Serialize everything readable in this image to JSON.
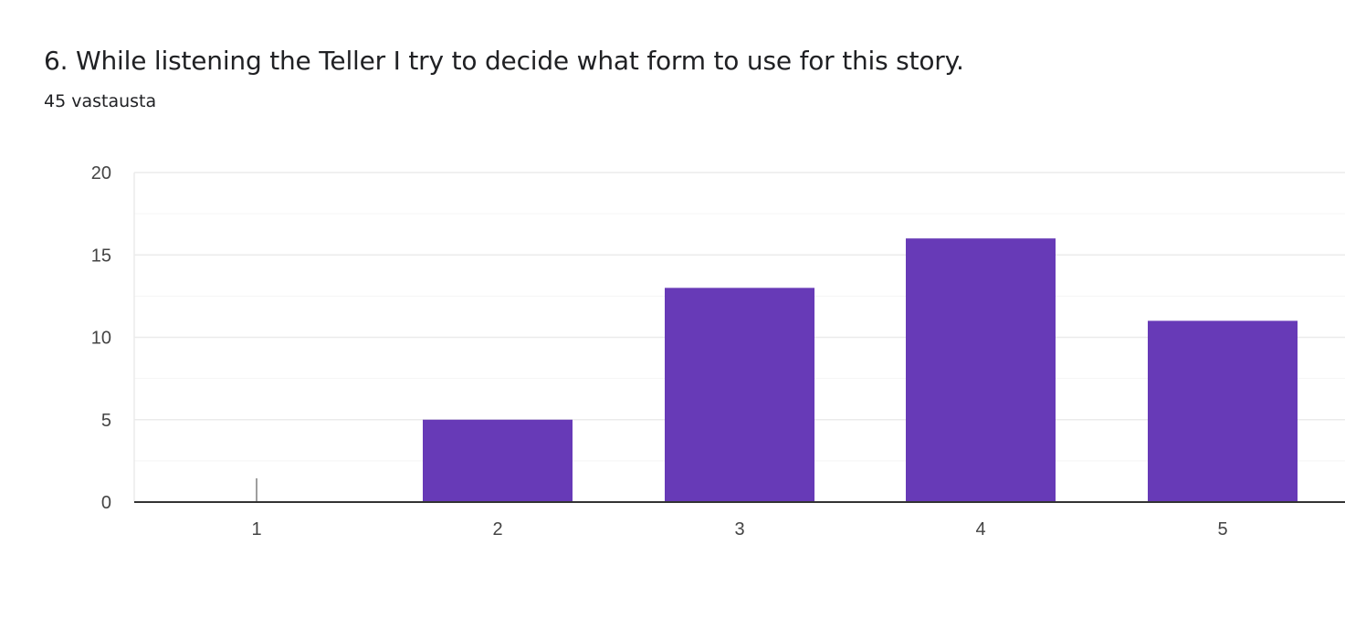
{
  "question": {
    "title": "6. While listening the Teller I try to decide what form to use for this story.",
    "response_count": "45 vastausta"
  },
  "colors": {
    "bar": "#673ab7",
    "gridline": "#ebebeb",
    "minor_gridline": "#f5f5f5",
    "axis": "#333333",
    "zero_marker": "#9e9e9e"
  },
  "chart_data": {
    "type": "bar",
    "categories": [
      "1",
      "2",
      "3",
      "4",
      "5"
    ],
    "values": [
      0,
      5,
      13,
      16,
      11
    ],
    "ylim": [
      0,
      20
    ],
    "yticks": [
      0,
      5,
      10,
      15,
      20
    ],
    "grid": true,
    "legend": "none"
  }
}
